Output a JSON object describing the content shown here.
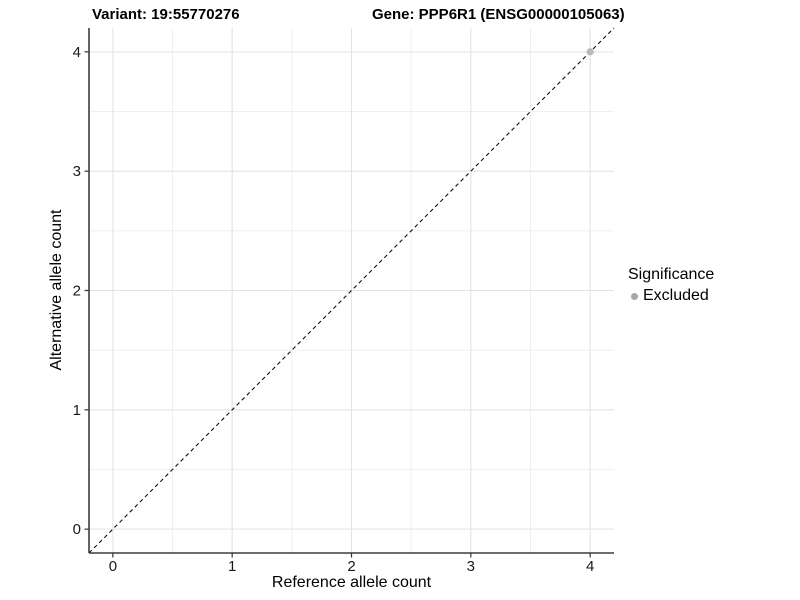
{
  "header": {
    "title_variant": "Variant: 19:55770276",
    "title_gene": "Gene: PPP6R1 (ENSG00000105063)"
  },
  "chart_data": {
    "type": "scatter",
    "title": "Variant: 19:55770276 — Gene: PPP6R1 (ENSG00000105063)",
    "xlabel": "Reference allele count",
    "ylabel": "Alternative allele count",
    "xlim": [
      -0.2,
      4.2
    ],
    "ylim": [
      -0.2,
      4.2
    ],
    "x_ticks": [
      0,
      1,
      2,
      3,
      4
    ],
    "y_ticks": [
      0,
      1,
      2,
      3,
      4
    ],
    "minor_ticks": [
      0.5,
      1.5,
      2.5,
      3.5
    ],
    "grid": true,
    "legend_position": "right",
    "series": [
      {
        "name": "Excluded",
        "color": "#b9b9b9",
        "points": [
          [
            4,
            4
          ]
        ]
      }
    ],
    "reference_line": {
      "type": "identity y=x",
      "style": "dashed",
      "color": "#111111",
      "from": [
        -0.2,
        -0.2
      ],
      "to": [
        4.2,
        4.2
      ]
    }
  },
  "legend": {
    "title": "Significance",
    "items": [
      {
        "label": "Excluded",
        "color": "#a8a8a8"
      }
    ]
  },
  "style": {
    "grid_major_color": "#e3e3e3",
    "grid_minor_color": "#eeeeee",
    "axis_line_color": "#3d3d3d",
    "tick_color": "#333333",
    "tick_label_color": "#1a1a1a"
  }
}
